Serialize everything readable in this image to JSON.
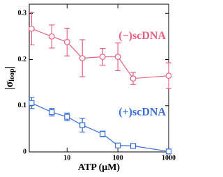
{
  "chart_data": {
    "type": "line",
    "x_label": "ATP (μM)",
    "y_label": [
      "|σ",
      "loop",
      "|"
    ],
    "x": [
      2,
      5,
      10,
      20,
      50,
      100,
      200,
      1000
    ],
    "xscale": "log",
    "xlim": [
      1.8,
      1000
    ],
    "xticks": [
      10,
      100,
      1000
    ],
    "ylim": [
      0,
      0.32
    ],
    "yticks": [
      0,
      0.1,
      0.2,
      0.3
    ],
    "series": [
      {
        "name": "(−)scDNA",
        "color": "#e8607e",
        "marker": "circle",
        "values": [
          0.267,
          0.25,
          0.238,
          0.203,
          0.206,
          0.206,
          0.159,
          0.165
        ],
        "errors": [
          0.035,
          0.025,
          0.03,
          0.04,
          0.018,
          0.03,
          0.013,
          0.028
        ]
      },
      {
        "name": "(+)scDNA",
        "color": "#3a6fd8",
        "marker": "square",
        "values": [
          0.106,
          0.086,
          0.076,
          0.058,
          0.039,
          0.014,
          0.013,
          0.001
        ],
        "errors": [
          0.012,
          0.008,
          0.008,
          0.015,
          0.006,
          0.003,
          0.002,
          0.002
        ]
      }
    ]
  }
}
